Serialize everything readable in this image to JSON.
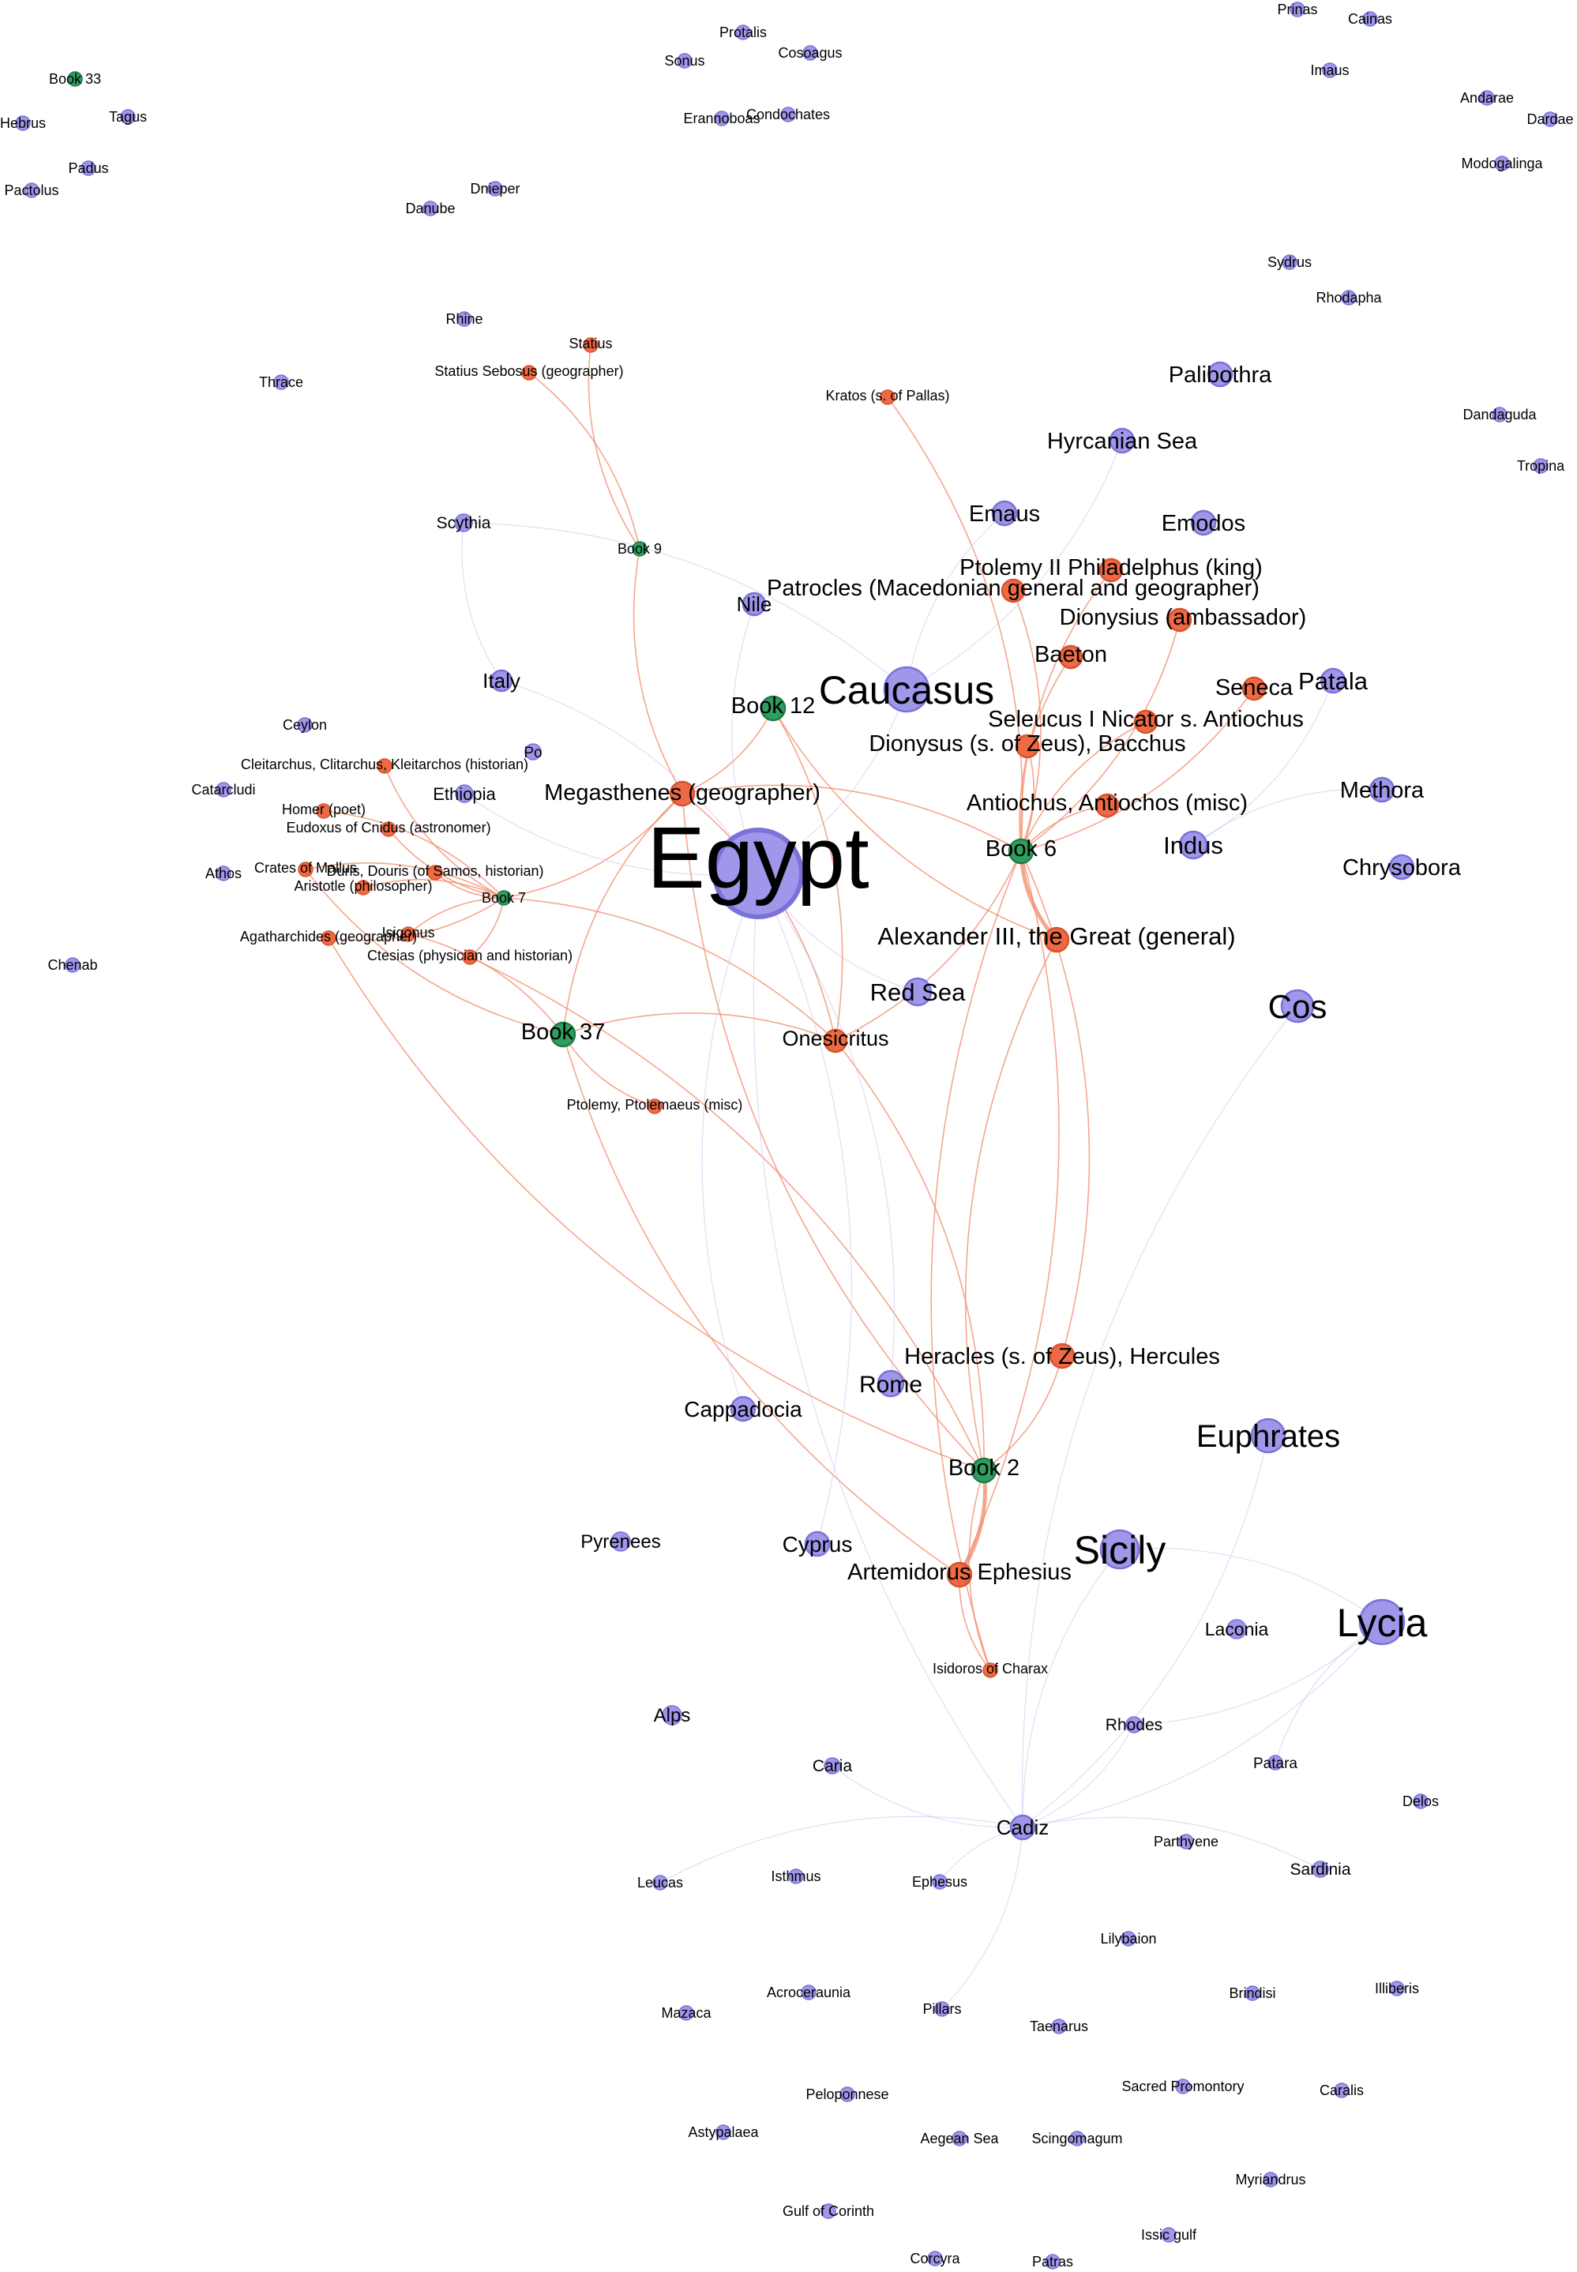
{
  "colors": {
    "place_fill": "#9e97ea",
    "place_stroke": "#7a72d8",
    "person_fill": "#ee6a44",
    "person_stroke": "#d8532d",
    "book_fill": "#2e9e5e",
    "book_stroke": "#1f7d47",
    "edge_person": "#f08a6a",
    "edge_place": "#c6c3ef",
    "edge_faint": "#ddd9f3"
  },
  "node_types": [
    "place",
    "person",
    "book"
  ],
  "nodes": [
    {
      "id": "egypt",
      "label": "Egypt",
      "type": "place"
    },
    {
      "id": "caucasus",
      "label": "Caucasus",
      "type": "place"
    },
    {
      "id": "lycia",
      "label": "Lycia",
      "type": "place"
    },
    {
      "id": "sicily",
      "label": "Sicily",
      "type": "place"
    },
    {
      "id": "cos",
      "label": "Cos",
      "type": "place"
    },
    {
      "id": "euphrates",
      "label": "Euphrates",
      "type": "place"
    },
    {
      "id": "red-sea",
      "label": "Red Sea",
      "type": "place"
    },
    {
      "id": "indus",
      "label": "Indus",
      "type": "place"
    },
    {
      "id": "chrysobora",
      "label": "Chrysobora",
      "type": "place"
    },
    {
      "id": "methora",
      "label": "Methora",
      "type": "place"
    },
    {
      "id": "patala",
      "label": "Patala",
      "type": "place"
    },
    {
      "id": "palibothra",
      "label": "Palibothra",
      "type": "place"
    },
    {
      "id": "hyrcanian-sea",
      "label": "Hyrcanian Sea",
      "type": "place"
    },
    {
      "id": "emaus",
      "label": "Emaus",
      "type": "place"
    },
    {
      "id": "emodos",
      "label": "Emodos",
      "type": "place"
    },
    {
      "id": "nile",
      "label": "Nile",
      "type": "place"
    },
    {
      "id": "italy",
      "label": "Italy",
      "type": "place"
    },
    {
      "id": "po",
      "label": "Po",
      "type": "place"
    },
    {
      "id": "ethiopia",
      "label": "Ethiopia",
      "type": "place"
    },
    {
      "id": "scythia",
      "label": "Scythia",
      "type": "place"
    },
    {
      "id": "ceylon",
      "label": "Ceylon",
      "type": "place"
    },
    {
      "id": "cataractae",
      "label": "Catarcludi",
      "type": "place"
    },
    {
      "id": "athos",
      "label": "Athos",
      "type": "place"
    },
    {
      "id": "chenab",
      "label": "Chenab",
      "type": "place"
    },
    {
      "id": "rome",
      "label": "Rome",
      "type": "place"
    },
    {
      "id": "cappadocia",
      "label": "Cappadocia",
      "type": "place"
    },
    {
      "id": "cyprus",
      "label": "Cyprus",
      "type": "place"
    },
    {
      "id": "pyrenees",
      "label": "Pyrenees",
      "type": "place"
    },
    {
      "id": "laconia",
      "label": "Laconia",
      "type": "place"
    },
    {
      "id": "alps",
      "label": "Alps",
      "type": "place"
    },
    {
      "id": "rhodes",
      "label": "Rhodes",
      "type": "place"
    },
    {
      "id": "caria",
      "label": "Caria",
      "type": "place"
    },
    {
      "id": "patara",
      "label": "Patara",
      "type": "place"
    },
    {
      "id": "delos",
      "label": "Delos",
      "type": "place"
    },
    {
      "id": "cadiz",
      "label": "Cadiz",
      "type": "place"
    },
    {
      "id": "leucas",
      "label": "Leucas",
      "type": "place"
    },
    {
      "id": "isthmus",
      "label": "Isthmus",
      "type": "place"
    },
    {
      "id": "ephesus",
      "label": "Ephesus",
      "type": "place"
    },
    {
      "id": "parthyene",
      "label": "Parthyene",
      "type": "place"
    },
    {
      "id": "sardinia",
      "label": "Sardinia",
      "type": "place"
    },
    {
      "id": "lilybaion",
      "label": "Lilybaion",
      "type": "place"
    },
    {
      "id": "acroceraunia",
      "label": "Acroceraunia",
      "type": "place"
    },
    {
      "id": "mazaca",
      "label": "Mazaca",
      "type": "place"
    },
    {
      "id": "pillars",
      "label": "Pillars",
      "type": "place"
    },
    {
      "id": "brindisi",
      "label": "Brindisi",
      "type": "place"
    },
    {
      "id": "illiberis",
      "label": "Illiberis",
      "type": "place"
    },
    {
      "id": "taenarus",
      "label": "Taenarus",
      "type": "place"
    },
    {
      "id": "peloponnese",
      "label": "Peloponnese",
      "type": "place"
    },
    {
      "id": "sacred-promontory",
      "label": "Sacred Promontory",
      "type": "place"
    },
    {
      "id": "caralis",
      "label": "Caralis",
      "type": "place"
    },
    {
      "id": "astypalaea",
      "label": "Astypalaea",
      "type": "place"
    },
    {
      "id": "aegean-sea",
      "label": "Aegean Sea",
      "type": "place"
    },
    {
      "id": "scingomagum",
      "label": "Scingomagum",
      "type": "place"
    },
    {
      "id": "myriandrus",
      "label": "Myriandrus",
      "type": "place"
    },
    {
      "id": "gulf-of-corinth",
      "label": "Gulf of Corinth",
      "type": "place"
    },
    {
      "id": "issic-gulf",
      "label": "Issic gulf",
      "type": "place"
    },
    {
      "id": "corcyra",
      "label": "Corcyra",
      "type": "place"
    },
    {
      "id": "patras",
      "label": "Patras",
      "type": "place"
    },
    {
      "id": "prinas",
      "label": "Prinas",
      "type": "place"
    },
    {
      "id": "cainas",
      "label": "Cainas",
      "type": "place"
    },
    {
      "id": "imaus",
      "label": "Imaus",
      "type": "place"
    },
    {
      "id": "andarae",
      "label": "Andarae",
      "type": "place"
    },
    {
      "id": "dardae",
      "label": "Dardae",
      "type": "place"
    },
    {
      "id": "modogalinga",
      "label": "Modogalinga",
      "type": "place"
    },
    {
      "id": "sydrus",
      "label": "Sydrus",
      "type": "place"
    },
    {
      "id": "rhodapha",
      "label": "Rhodapha",
      "type": "place"
    },
    {
      "id": "dandaguda",
      "label": "Dandaguda",
      "type": "place"
    },
    {
      "id": "tropina",
      "label": "Tropina",
      "type": "place"
    },
    {
      "id": "protalis",
      "label": "Protalis",
      "type": "place"
    },
    {
      "id": "sonus",
      "label": "Sonus",
      "type": "place"
    },
    {
      "id": "cosoagus",
      "label": "Cosoagus",
      "type": "place"
    },
    {
      "id": "erannoboas",
      "label": "Erannoboas",
      "type": "place"
    },
    {
      "id": "condochates",
      "label": "Condochates",
      "type": "place"
    },
    {
      "id": "hebrus",
      "label": "Hebrus",
      "type": "place"
    },
    {
      "id": "tagus",
      "label": "Tagus",
      "type": "place"
    },
    {
      "id": "padus",
      "label": "Padus",
      "type": "place"
    },
    {
      "id": "pactolus",
      "label": "Pactolus",
      "type": "place"
    },
    {
      "id": "dnieper",
      "label": "Dnieper",
      "type": "place"
    },
    {
      "id": "danube",
      "label": "Danube",
      "type": "place"
    },
    {
      "id": "rhine",
      "label": "Rhine",
      "type": "place"
    },
    {
      "id": "thrace",
      "label": "Thrace",
      "type": "place"
    },
    {
      "id": "alexander",
      "label": "Alexander III, the Great (general)",
      "type": "person"
    },
    {
      "id": "megasthenes",
      "label": "Megasthenes (geographer)",
      "type": "person"
    },
    {
      "id": "onesicritus",
      "label": "Onesicritus",
      "type": "person"
    },
    {
      "id": "heracles",
      "label": "Heracles (s. of Zeus), Hercules",
      "type": "person"
    },
    {
      "id": "artemidorus",
      "label": "Artemidorus Ephesius",
      "type": "person"
    },
    {
      "id": "antiochus",
      "label": "Antiochus, Antiochos (misc)",
      "type": "person"
    },
    {
      "id": "dionysus",
      "label": "Dionysus (s. of Zeus), Bacchus",
      "type": "person"
    },
    {
      "id": "seleucus",
      "label": "Seleucus I Nicator s. Antiochus",
      "type": "person"
    },
    {
      "id": "seneca",
      "label": "Seneca",
      "type": "person"
    },
    {
      "id": "baeton",
      "label": "Baeton",
      "type": "person"
    },
    {
      "id": "dionysius",
      "label": "Dionysius (ambassador)",
      "type": "person"
    },
    {
      "id": "ptolemy-ii",
      "label": "Ptolemy II Philadelphus (king)",
      "type": "person"
    },
    {
      "id": "patrocles",
      "label": "Patrocles (Macedonian general and geographer)",
      "type": "person"
    },
    {
      "id": "kratos",
      "label": "Kratos (s. of Pallas)",
      "type": "person"
    },
    {
      "id": "statius",
      "label": "Statius",
      "type": "person"
    },
    {
      "id": "statius-sebosus",
      "label": "Statius Sebosus (geographer)",
      "type": "person"
    },
    {
      "id": "cleitarchus",
      "label": "Cleitarchus, Clitarchus, Kleitarchos (historian)",
      "type": "person"
    },
    {
      "id": "homer",
      "label": "Homer (poet)",
      "type": "person"
    },
    {
      "id": "eudoxus",
      "label": "Eudoxus of Cnidus (astronomer)",
      "type": "person"
    },
    {
      "id": "crates",
      "label": "Crates of Mallus",
      "type": "person"
    },
    {
      "id": "duris",
      "label": "Duris, Douris (of Samos, historian)",
      "type": "person"
    },
    {
      "id": "aristotle",
      "label": "Aristotle (philosopher)",
      "type": "person"
    },
    {
      "id": "agatharchides",
      "label": "Agatharchides (geographer)",
      "type": "person"
    },
    {
      "id": "isigonus",
      "label": "Isigonus",
      "type": "person"
    },
    {
      "id": "ctesias",
      "label": "Ctesias (physician and historian)",
      "type": "person"
    },
    {
      "id": "ptolemy-misc",
      "label": "Ptolemy, Ptolemaeus (misc)",
      "type": "person"
    },
    {
      "id": "isidoros",
      "label": "Isidoros of Charax",
      "type": "person"
    },
    {
      "id": "book6",
      "label": "Book 6",
      "type": "book"
    },
    {
      "id": "book12",
      "label": "Book 12",
      "type": "book"
    },
    {
      "id": "book37",
      "label": "Book 37",
      "type": "book"
    },
    {
      "id": "book2",
      "label": "Book 2",
      "type": "book"
    },
    {
      "id": "book7",
      "label": "Book 7",
      "type": "book"
    },
    {
      "id": "book9",
      "label": "Book 9",
      "type": "book"
    },
    {
      "id": "book33",
      "label": "Book 33",
      "type": "book"
    }
  ],
  "edges": [
    [
      "book6",
      "alexander"
    ],
    [
      "book6",
      "antiochus"
    ],
    [
      "book6",
      "megasthenes"
    ],
    [
      "book6",
      "onesicritus"
    ],
    [
      "book6",
      "dionysus"
    ],
    [
      "book6",
      "seleucus"
    ],
    [
      "book6",
      "seneca"
    ],
    [
      "book6",
      "baeton"
    ],
    [
      "book6",
      "dionysius"
    ],
    [
      "book6",
      "ptolemy-ii"
    ],
    [
      "book6",
      "patrocles"
    ],
    [
      "book6",
      "heracles"
    ],
    [
      "book6",
      "kratos"
    ],
    [
      "book6",
      "artemidorus"
    ],
    [
      "book6",
      "isidoros"
    ],
    [
      "book2",
      "artemidorus"
    ],
    [
      "book2",
      "heracles"
    ],
    [
      "book2",
      "alexander"
    ],
    [
      "book2",
      "onesicritus"
    ],
    [
      "book2",
      "megasthenes"
    ],
    [
      "book2",
      "isidoros"
    ],
    [
      "book2",
      "agatharchides"
    ],
    [
      "book2",
      "ctesias"
    ],
    [
      "book37",
      "megasthenes"
    ],
    [
      "book37",
      "ptolemy-misc"
    ],
    [
      "book37",
      "crates"
    ],
    [
      "book37",
      "isigonus"
    ],
    [
      "book37",
      "onesicritus"
    ],
    [
      "book37",
      "artemidorus"
    ],
    [
      "book7",
      "cleitarchus"
    ],
    [
      "book7",
      "homer"
    ],
    [
      "book7",
      "eudoxus"
    ],
    [
      "book7",
      "crates"
    ],
    [
      "book7",
      "duris"
    ],
    [
      "book7",
      "aristotle"
    ],
    [
      "book7",
      "agatharchides"
    ],
    [
      "book7",
      "isigonus"
    ],
    [
      "book7",
      "ctesias"
    ],
    [
      "book7",
      "megasthenes"
    ],
    [
      "book7",
      "onesicritus"
    ],
    [
      "book9",
      "statius-sebosus"
    ],
    [
      "book9",
      "statius"
    ],
    [
      "book9",
      "megasthenes"
    ],
    [
      "book12",
      "megasthenes"
    ],
    [
      "book12",
      "alexander"
    ],
    [
      "book12",
      "onesicritus"
    ],
    [
      "artemidorus",
      "isidoros"
    ],
    [
      "megasthenes",
      "onesicritus"
    ],
    [
      "egypt",
      "cadiz"
    ],
    [
      "egypt",
      "cyprus"
    ],
    [
      "egypt",
      "cappadocia"
    ],
    [
      "egypt",
      "rome"
    ],
    [
      "egypt",
      "red-sea"
    ],
    [
      "egypt",
      "nile"
    ],
    [
      "egypt",
      "italy"
    ],
    [
      "egypt",
      "ethiopia"
    ],
    [
      "egypt",
      "caucasus"
    ],
    [
      "cadiz",
      "sicily"
    ],
    [
      "cadiz",
      "rhodes"
    ],
    [
      "cadiz",
      "caria"
    ],
    [
      "cadiz",
      "ephesus"
    ],
    [
      "cadiz",
      "sardinia"
    ],
    [
      "cadiz",
      "leucas"
    ],
    [
      "cadiz",
      "pillars"
    ],
    [
      "cadiz",
      "lycia"
    ],
    [
      "cadiz",
      "cos"
    ],
    [
      "cadiz",
      "euphrates"
    ],
    [
      "sicily",
      "lycia"
    ],
    [
      "lycia",
      "patara"
    ],
    [
      "lycia",
      "rhodes"
    ],
    [
      "caucasus",
      "hyrcanian-sea"
    ],
    [
      "caucasus",
      "emaus"
    ],
    [
      "indus",
      "patala"
    ],
    [
      "indus",
      "methora"
    ],
    [
      "scythia",
      "italy"
    ],
    [
      "scythia",
      "caucasus"
    ]
  ]
}
